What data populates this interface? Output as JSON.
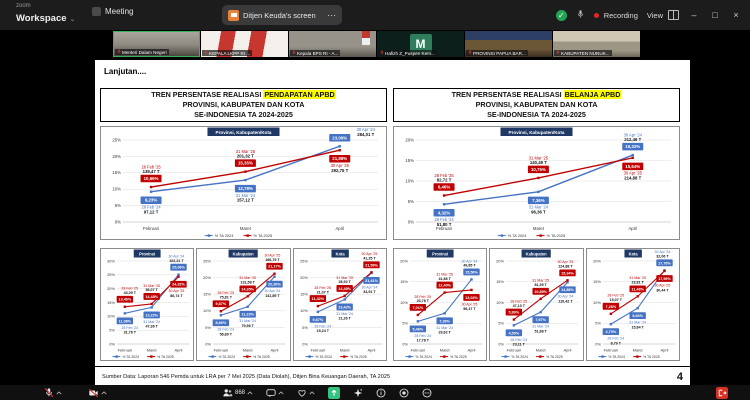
{
  "window": {
    "brand_top": "zoom",
    "brand": "Workspace",
    "brand_caret": "⌄",
    "meeting_tab": "Meeting",
    "share_pill": "Ditjen Keuda's screen",
    "pill_ellipsis": "⋯",
    "recording": "Recording",
    "view": "View",
    "min_glyph": "–",
    "max_glyph": "□",
    "close_glyph": "×",
    "next_glyph": "›"
  },
  "participants": [
    {
      "name": "Menteri Dalam Negeri",
      "variant": "office",
      "active": true
    },
    {
      "name": "KEPALA LKPP RI ...",
      "variant": "flags",
      "active": false
    },
    {
      "name": "Kepala BPS RI - A...",
      "variant": "desk",
      "active": false
    },
    {
      "name": "Hafizh Z_Puspen Kem...",
      "variant": "initial",
      "initial": "M",
      "active": false
    },
    {
      "name": "PROVINSI PAPUA BAR...",
      "variant": "room-blue",
      "active": false
    },
    {
      "name": "KABUPATEN NUNUK...",
      "variant": "room-bright",
      "active": false
    }
  ],
  "slide": {
    "lanjutan": "Lanjutan....",
    "panels": [
      {
        "prefix": "TREN PERSENTASE REALISASI ",
        "highlight": "PENDAPATAN APBD",
        "line2": "PROVINSI, KABUPATEN DAN KOTA",
        "line3": "SE-INDONESIA TA 2024-2025"
      },
      {
        "prefix": "TREN PERSENTASE REALISASI ",
        "highlight": "BELANJA APBD",
        "line2": "PROVINSI, KABUPATEN DAN KOTA",
        "line3": "SE-INDONESIA TA 2024-2025"
      }
    ],
    "footer": {
      "source": "Sumber Data: Laporan 546 Pemda untuk LRA per 7 Mei 2025 (Data Diolah), Ditjen Bina Keuangan Daerah, TA 2025",
      "page": "4"
    }
  },
  "chart_data": [
    {
      "type": "line",
      "title": "Provinsi, Kabupaten/Kota",
      "section": "PENDAPATAN APBD",
      "categories": [
        "Februari",
        "Maret",
        "April"
      ],
      "ylim": [
        0,
        25
      ],
      "ytick": 5,
      "grid": true,
      "legend_position": "bottom",
      "series": [
        {
          "name": "% TA 2024",
          "color": "#4472C4",
          "values": [
            9.23,
            12.78,
            23.09
          ],
          "labels": [
            "9,23%",
            "12,78%",
            "23,09%"
          ],
          "dates": [
            "28 Feb '24",
            "31 Mar '24",
            "30 Apr '24"
          ],
          "amounts": [
            "97,12 T",
            "157,12 T",
            "284,01 T"
          ]
        },
        {
          "name": "% TA 2025",
          "color": "#C00000",
          "values": [
            10.66,
            15.35,
            21.88
          ],
          "labels": [
            "10,66%",
            "15,35%",
            "21,88%"
          ],
          "dates": [
            "28 Feb '25",
            "31 Mar '25",
            "30 Apr '25"
          ],
          "amounts": [
            "139,47 T",
            "201,32 T",
            "292,75 T"
          ]
        }
      ]
    },
    {
      "type": "line",
      "title": "Provinsi, Kabupaten/Kota",
      "section": "BELANJA APBD",
      "categories": [
        "Februari",
        "Maret",
        "April"
      ],
      "ylim": [
        0,
        20
      ],
      "ytick": 5,
      "grid": true,
      "legend_position": "bottom",
      "series": [
        {
          "name": "% TA 2024",
          "color": "#4472C4",
          "values": [
            4.32,
            7.36,
            16.32
          ],
          "labels": [
            "4,32%",
            "7,36%",
            "16,32%"
          ],
          "dates": [
            "28 Feb '24",
            "31 Mar '24",
            "30 Apr '24"
          ],
          "amounts": [
            "51,80 T",
            "96,36 T",
            "212,46 T"
          ]
        },
        {
          "name": "% TA 2025",
          "color": "#C00000",
          "values": [
            6.46,
            10.75,
            15.64
          ],
          "labels": [
            "6,46%",
            "10,75%",
            "15,64%"
          ],
          "dates": [
            "28 Feb '25",
            "31 Mar '25",
            "30 Apr '25"
          ],
          "amounts": [
            "82,72 T",
            "140,49 T",
            "214,88 T"
          ]
        }
      ]
    },
    {
      "type": "line",
      "title": "Provinsi",
      "section": "PENDAPATAN APBD",
      "categories": [
        "Februari",
        "Maret",
        "April"
      ],
      "ylim": [
        0,
        30
      ],
      "ytick": 5,
      "grid": true,
      "legend_position": "bottom",
      "series": [
        {
          "name": "% TA 2024",
          "color": "#4472C4",
          "values": [
            11.08,
            13.22,
            25.06
          ],
          "labels": [
            "11,08%",
            "13,22%",
            "25,06%"
          ],
          "dates": [
            "28 Feb '24",
            "31 Mar '24",
            "30 Apr '24"
          ],
          "amounts": [
            "31,76 T",
            "47,36 T",
            "102,21 T"
          ]
        },
        {
          "name": "% TA 2025",
          "color": "#C00000",
          "values": [
            13.46,
            14.48,
            24.32
          ],
          "labels": [
            "13,46%",
            "14,48%",
            "24,32%"
          ],
          "dates": [
            "28 Feb '25",
            "31 Mar '25",
            "30 Apr '25"
          ],
          "amounts": [
            "43,09 T",
            "56,07 T",
            "86,74 T"
          ]
        }
      ]
    },
    {
      "type": "line",
      "title": "Kabupaten",
      "section": "PENDAPATAN APBD",
      "categories": [
        "Februari",
        "Maret",
        "April"
      ],
      "ylim": [
        0,
        25
      ],
      "ytick": 5,
      "grid": true,
      "legend_position": "bottom",
      "series": [
        {
          "name": "% TA 2024",
          "color": "#4472C4",
          "values": [
            8.66,
            11.23,
            20.3
          ],
          "labels": [
            "8,66%",
            "11,23%",
            "20,30%"
          ],
          "dates": [
            "28 Feb '24",
            "31 Mar '24",
            "30 Apr '24"
          ],
          "amounts": [
            "56,89 T",
            "79,96 T",
            "141,89 T"
          ]
        },
        {
          "name": "% TA 2025",
          "color": "#C00000",
          "values": [
            9.87,
            14.35,
            21.17
          ],
          "labels": [
            "9,87%",
            "14,35%",
            "21,17%"
          ],
          "dates": [
            "28 Feb '25",
            "31 Mar '25",
            "30 Apr '25"
          ],
          "amounts": [
            "75,81 T",
            "131,58 T",
            "166,79 T"
          ]
        }
      ]
    },
    {
      "type": "line",
      "title": "Kota",
      "section": "PENDAPATAN APBD",
      "categories": [
        "Februari",
        "Maret",
        "April"
      ],
      "ylim": [
        0,
        25
      ],
      "ytick": 5,
      "grid": true,
      "legend_position": "bottom",
      "series": [
        {
          "name": "% TA 2024",
          "color": "#4472C4",
          "values": [
            9.67,
            13.42,
            21.41
          ],
          "labels": [
            "9,67%",
            "13,42%",
            "21,41%"
          ],
          "dates": [
            "28 Feb '24",
            "31 Mar '24",
            "30 Apr '24"
          ],
          "amounts": [
            "15,24 T",
            "21,26 T",
            "34,91 T"
          ]
        },
        {
          "name": "% TA 2025",
          "color": "#C00000",
          "values": [
            11.42,
            14.48,
            21.59
          ],
          "labels": [
            "11,42%",
            "14,48%",
            "21,59%"
          ],
          "dates": [
            "28 Feb '25",
            "31 Mar '25",
            "30 Apr '25"
          ],
          "amounts": [
            "21,07 T",
            "26,92 T",
            "41,25 T"
          ]
        }
      ]
    },
    {
      "type": "line",
      "title": "Provinsi",
      "section": "BELANJA APBD",
      "categories": [
        "Februari",
        "Maret",
        "April"
      ],
      "ylim": [
        0,
        20
      ],
      "ytick": 5,
      "grid": true,
      "legend_position": "bottom",
      "series": [
        {
          "name": "% TA 2024",
          "color": "#4472C4",
          "values": [
            5.46,
            7.39,
            15.56
          ],
          "labels": [
            "5,46%",
            "7,39%",
            "15,56%"
          ],
          "dates": [
            "28 Feb '24",
            "31 Mar '24",
            "30 Apr '24"
          ],
          "amounts": [
            "17,78 T",
            "29,62 T",
            "49,85 T"
          ]
        },
        {
          "name": "% TA 2025",
          "color": "#C00000",
          "values": [
            7.01,
            12.4,
            13.03
          ],
          "labels": [
            "7,01%",
            "12,40%",
            "13,03%"
          ],
          "dates": [
            "28 Feb '25",
            "31 Mar '25",
            "30 Apr '25"
          ],
          "amounts": [
            "23,76 T",
            "41,86 T",
            "56,47 T"
          ]
        }
      ]
    },
    {
      "type": "line",
      "title": "Kabupaten",
      "section": "BELANJA APBD",
      "categories": [
        "Februari",
        "Maret",
        "April"
      ],
      "ylim": [
        0,
        20
      ],
      "ytick": 5,
      "grid": true,
      "legend_position": "bottom",
      "series": [
        {
          "name": "% TA 2024",
          "color": "#4472C4",
          "values": [
            4.5,
            7.67,
            14.88
          ],
          "labels": [
            "4,50%",
            "7,67%",
            "14,88%"
          ],
          "dates": [
            "28 Feb '24",
            "31 Mar '24",
            "30 Apr '24"
          ],
          "amounts": [
            "23,11 T",
            "51,88 T",
            "110,42 T"
          ]
        },
        {
          "name": "% TA 2025",
          "color": "#C00000",
          "values": [
            5.89,
            10.89,
            15.34
          ],
          "labels": [
            "5,89%",
            "10,89%",
            "15,34%"
          ],
          "dates": [
            "28 Feb '25",
            "31 Mar '25",
            "30 Apr '25"
          ],
          "amounts": [
            "47,10 T",
            "81,39 T",
            "124,88 T"
          ]
        }
      ]
    },
    {
      "type": "line",
      "title": "Kota",
      "section": "BELANJA APBD",
      "categories": [
        "Februari",
        "Maret",
        "April"
      ],
      "ylim": [
        0,
        20
      ],
      "ytick": 5,
      "grid": true,
      "legend_position": "bottom",
      "series": [
        {
          "name": "% TA 2024",
          "color": "#4472C4",
          "values": [
            4.79,
            8.64,
            17.76
          ],
          "labels": [
            "4,79%",
            "8,64%",
            "17,76%"
          ],
          "dates": [
            "28 Feb '24",
            "31 Mar '24",
            "30 Apr '24"
          ],
          "amounts": [
            "8,79 T",
            "15,84 T",
            "32,06 T"
          ]
        },
        {
          "name": "% TA 2025",
          "color": "#C00000",
          "values": [
            7.28,
            11.48,
            17.59
          ],
          "labels": [
            "7,28%",
            "11,48%",
            "17,59%"
          ],
          "dates": [
            "28 Feb '25",
            "31 Mar '25",
            "30 Apr '25"
          ],
          "amounts": [
            "15,07 T",
            "23,81 T",
            "30,44 T"
          ]
        }
      ]
    }
  ],
  "toolbar": {
    "participants_count": "868"
  },
  "colors": {
    "navy": "#1F3864",
    "blue": "#4472C4",
    "red": "#C00000",
    "highlight": "#FFFF00",
    "share_green": "#33C481",
    "record_red": "#E02828",
    "next_blue": "#2D8CFF"
  }
}
